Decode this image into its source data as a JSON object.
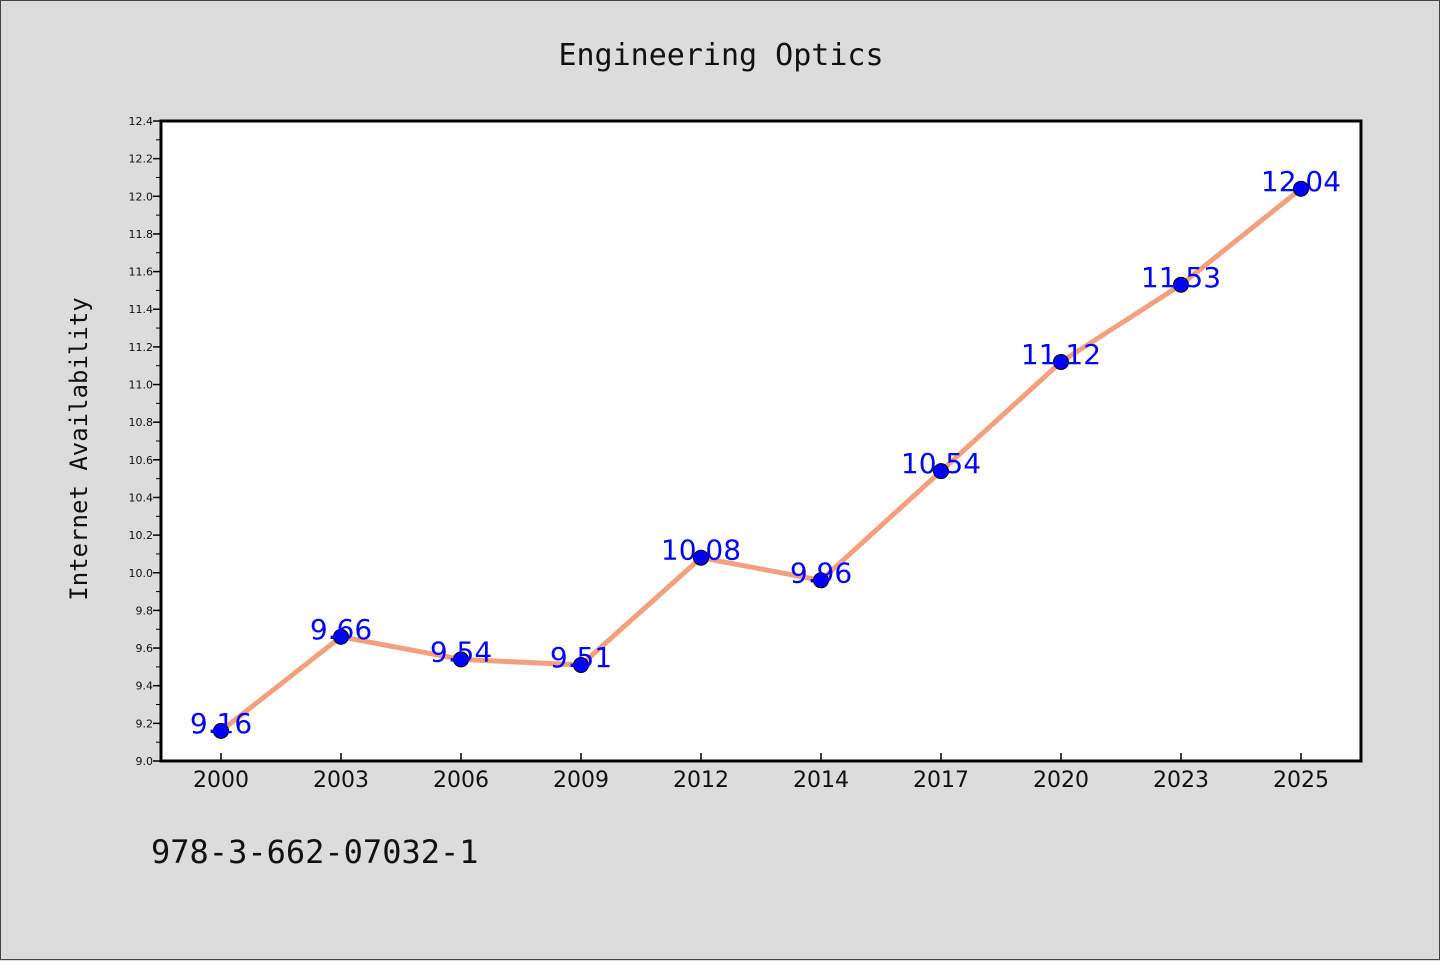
{
  "footer": {
    "isbn": "978-3-662-07032-1"
  },
  "colors": {
    "background": "#dcdcdc",
    "plot_bg": "#ffffff",
    "line": "#f4a07e",
    "marker": "#0000ff",
    "label": "#0000ff"
  },
  "chart_data": {
    "type": "line",
    "title": "Engineering Optics",
    "xlabel": "",
    "ylabel": "Internet Availability",
    "categories": [
      "2000",
      "2003",
      "2006",
      "2009",
      "2012",
      "2014",
      "2017",
      "2020",
      "2023",
      "2025"
    ],
    "series": [
      {
        "values": [
          9.16,
          9.66,
          9.54,
          9.51,
          10.08,
          9.96,
          10.54,
          11.12,
          11.53,
          12.04
        ],
        "labels": [
          "9.16",
          "9.66",
          "9.54",
          "9.51",
          "10.08",
          "9.96",
          "10.54",
          "11.12",
          "11.53",
          "12.04"
        ]
      }
    ],
    "ylim": [
      9.0,
      12.4
    ],
    "yticks": [
      "9.0",
      "9.2",
      "9.4",
      "9.6",
      "9.8",
      "10.0",
      "10.2",
      "10.4",
      "10.6",
      "10.8",
      "11.0",
      "11.2",
      "11.4",
      "11.6",
      "11.8",
      "12.0",
      "12.2",
      "12.4"
    ],
    "grid": false,
    "legend": "none"
  }
}
